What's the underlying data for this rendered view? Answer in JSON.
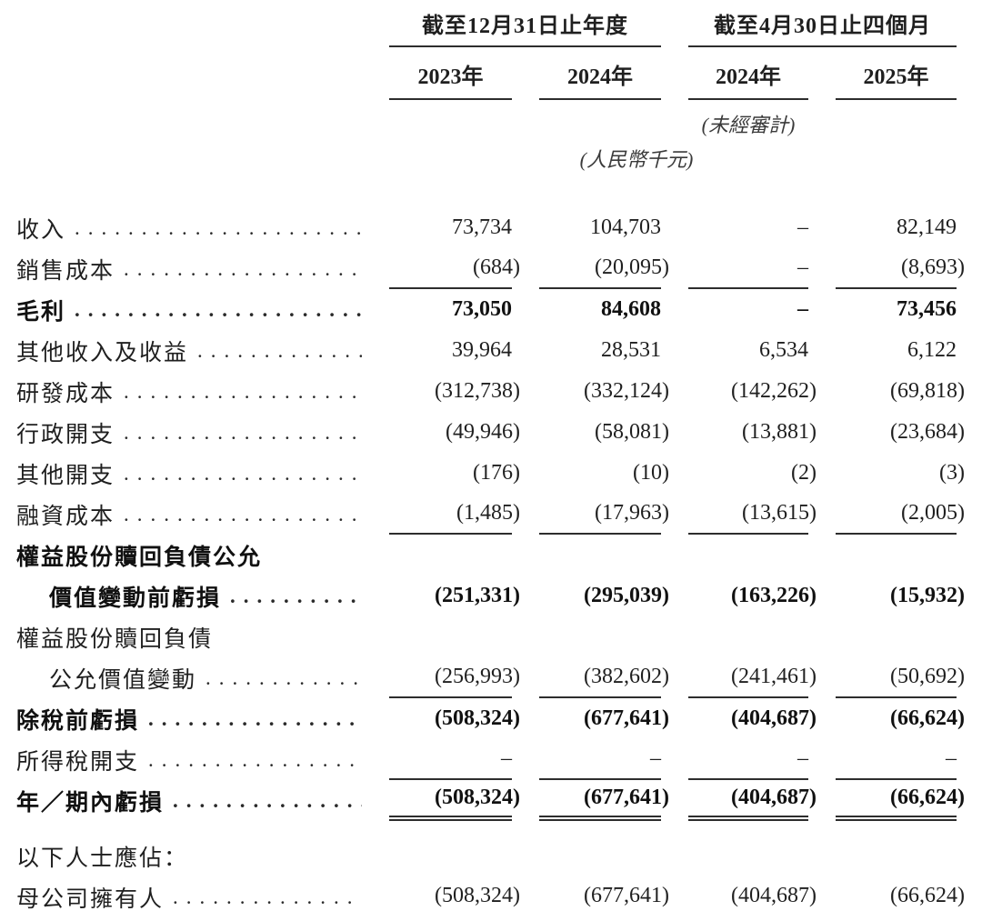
{
  "table": {
    "col_groups": [
      {
        "title": "截至12月31日止年度",
        "years": [
          "2023年",
          "2024年"
        ]
      },
      {
        "title": "截至4月30日止四個月",
        "years": [
          "2024年",
          "2025年"
        ]
      }
    ],
    "notes": {
      "unaudited": "(未經審計)",
      "currency": "(人民幣千元)"
    },
    "rows": [
      {
        "label": "收入",
        "values": [
          "73,734",
          "104,703",
          "–",
          "82,149"
        ]
      },
      {
        "label": "銷售成本",
        "values": [
          "(684)",
          "(20,095)",
          "–",
          "(8,693)"
        ],
        "rule_after": "single"
      },
      {
        "label": "毛利",
        "bold": true,
        "values": [
          "73,050",
          "84,608",
          "–",
          "73,456"
        ]
      },
      {
        "label": "其他收入及收益",
        "values": [
          "39,964",
          "28,531",
          "6,534",
          "6,122"
        ]
      },
      {
        "label": "研發成本",
        "values": [
          "(312,738)",
          "(332,124)",
          "(142,262)",
          "(69,818)"
        ]
      },
      {
        "label": "行政開支",
        "values": [
          "(49,946)",
          "(58,081)",
          "(13,881)",
          "(23,684)"
        ]
      },
      {
        "label": "其他開支",
        "values": [
          "(176)",
          "(10)",
          "(2)",
          "(3)"
        ]
      },
      {
        "label": "融資成本",
        "values": [
          "(1,485)",
          "(17,963)",
          "(13,615)",
          "(2,005)"
        ],
        "rule_after": "single"
      },
      {
        "label": "權益股份贖回負債公允",
        "label2": "價值變動前虧損",
        "bold": true,
        "values": [
          "(251,331)",
          "(295,039)",
          "(163,226)",
          "(15,932)"
        ]
      },
      {
        "label": "權益股份贖回負債",
        "label2": "公允價值變動",
        "values": [
          "(256,993)",
          "(382,602)",
          "(241,461)",
          "(50,692)"
        ],
        "rule_after": "single"
      },
      {
        "label": "除稅前虧損",
        "bold": true,
        "values": [
          "(508,324)",
          "(677,641)",
          "(404,687)",
          "(66,624)"
        ]
      },
      {
        "label": "所得稅開支",
        "values": [
          "–",
          "–",
          "–",
          "–"
        ],
        "rule_after": "single"
      },
      {
        "label": "年／期內虧損",
        "bold": true,
        "values": [
          "(508,324)",
          "(677,641)",
          "(404,687)",
          "(66,624)"
        ],
        "rule_after": "double"
      },
      {
        "label": "以下人士應佔：",
        "section": true,
        "gap_before": true
      },
      {
        "label": "母公司擁有人",
        "values": [
          "(508,324)",
          "(677,641)",
          "(404,687)",
          "(66,624)"
        ],
        "rule_after": "single"
      }
    ]
  }
}
